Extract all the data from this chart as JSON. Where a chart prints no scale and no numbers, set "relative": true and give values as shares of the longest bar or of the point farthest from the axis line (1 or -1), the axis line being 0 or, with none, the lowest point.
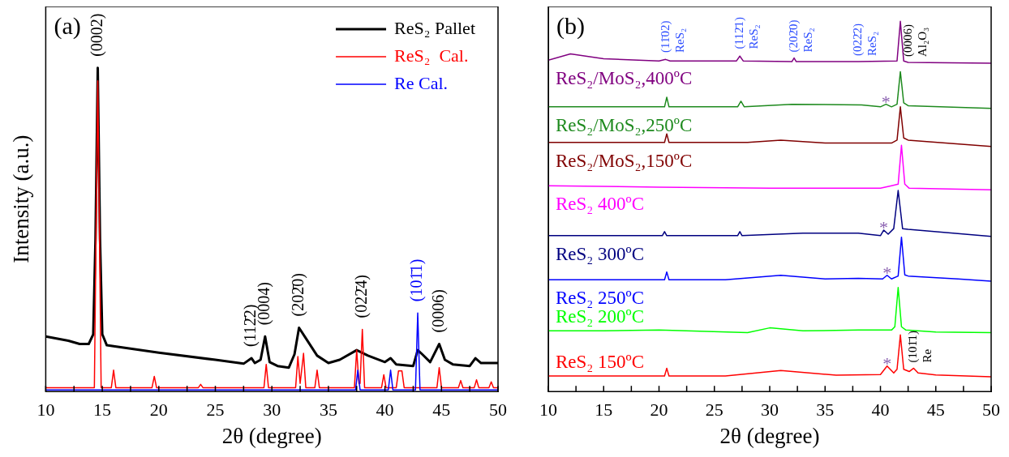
{
  "chart_data": [
    {
      "type": "line",
      "title": "(a)",
      "xlabel": "2θ (degree)",
      "ylabel": "Intensity (a.u.)",
      "relative": true,
      "marker": "none",
      "legend": "top right",
      "xlim": [
        10,
        50
      ],
      "xticks": [
        10,
        {
          "value": 12.5,
          "label": null
        },
        15,
        {
          "value": 17.5,
          "label": null
        },
        20,
        {
          "value": 22.5,
          "label": null
        },
        25,
        {
          "value": 27.5,
          "label": null
        },
        30,
        {
          "value": 32.5,
          "label": null
        },
        35,
        {
          "value": 37.5,
          "label": null
        },
        40,
        {
          "value": 42.5,
          "label": null
        },
        45,
        {
          "value": 47.5,
          "label": null
        },
        50
      ],
      "series": [
        {
          "name": "ReS₂ Pallet",
          "color": "#000000",
          "x": [
            10,
            12,
            13,
            13.8,
            14.2,
            14.4,
            14.6,
            14.8,
            15.0,
            15.4,
            16,
            20,
            25,
            27.5,
            28.2,
            28.5,
            29.0,
            29.4,
            29.8,
            30.5,
            31.5,
            32.0,
            32.4,
            33,
            34,
            35,
            36,
            37.5,
            38.5,
            40,
            40.5,
            41,
            42.5,
            42.9,
            43.3,
            44,
            44.8,
            45.3,
            46,
            47.5,
            48,
            48.5,
            50
          ],
          "values": [
            0.17,
            0.157,
            0.147,
            0.147,
            0.177,
            0.472,
            1,
            0.472,
            0.177,
            0.143,
            0.14,
            0.12,
            0.098,
            0.086,
            0.103,
            0.088,
            0.098,
            0.17,
            0.091,
            0.079,
            0.074,
            0.115,
            0.197,
            0.165,
            0.111,
            0.088,
            0.098,
            0.128,
            0.111,
            0.091,
            0.103,
            0.084,
            0.079,
            0.128,
            0.115,
            0.091,
            0.147,
            0.098,
            0.084,
            0.079,
            0.103,
            0.088,
            0.088
          ]
        },
        {
          "name": "ReS₂  Cal.",
          "color": "#ff0000",
          "x": [
            10,
            14.3,
            14.6,
            14.9,
            15.8,
            16.0,
            16.2,
            19.4,
            19.6,
            19.8,
            23.5,
            23.7,
            23.9,
            29.3,
            29.5,
            29.7,
            32.1,
            32.3,
            32.5,
            32.8,
            33.0,
            33.8,
            34.0,
            34.2,
            37.3,
            37.5,
            37.7,
            37.8,
            38.0,
            38.2,
            39.7,
            39.9,
            40.1,
            41.0,
            41.2,
            41.5,
            41.7,
            44.6,
            44.8,
            45.0,
            46.5,
            46.7,
            46.9,
            47.9,
            48.1,
            48.3,
            49.2,
            49.4,
            49.6,
            50
          ],
          "values": [
            0.012,
            0.012,
            0.96,
            0.012,
            0.012,
            0.066,
            0.012,
            0.012,
            0.047,
            0.012,
            0.012,
            0.022,
            0.012,
            0.012,
            0.084,
            0.012,
            0.012,
            0.108,
            0.025,
            0.118,
            0.012,
            0.012,
            0.066,
            0.012,
            0.012,
            0.128,
            0.025,
            0.025,
            0.192,
            0.012,
            0.012,
            0.052,
            0.012,
            0.012,
            0.064,
            0.064,
            0.012,
            0.012,
            0.074,
            0.012,
            0.012,
            0.034,
            0.012,
            0.012,
            0.036,
            0.012,
            0.012,
            0.03,
            0.012,
            0.012
          ]
        },
        {
          "name": "Re Cal.",
          "color": "#0000ff",
          "x": [
            10,
            37.4,
            37.6,
            37.8,
            40.3,
            40.5,
            40.7,
            42.7,
            42.9,
            43.1,
            50
          ],
          "values": [
            0.005,
            0.005,
            0.066,
            0.005,
            0.005,
            0.066,
            0.005,
            0.005,
            0.243,
            0.005,
            0.005
          ]
        }
      ],
      "annotations": [
        {
          "text": "(0002)",
          "x": 14.6,
          "y": 1
        },
        {
          "text": "(112̄2)",
          "x": 28.2,
          "y": 0.103
        },
        {
          "text": "(0004)",
          "x": 29.4,
          "y": 0.17
        },
        {
          "text": "(202̄0)",
          "x": 32.4,
          "y": 0.197
        },
        {
          "text": "(022̄4)",
          "x": 38.0,
          "y": 0.192
        },
        {
          "text": "(101̄1)",
          "x": 42.9,
          "y": 0.243
        },
        {
          "text": "(0006)",
          "x": 44.8,
          "y": 0.147
        }
      ]
    },
    {
      "type": "line",
      "title": "(b)",
      "xlabel": "2θ (degree)",
      "relative": true,
      "marker": "none",
      "xlim": [
        10,
        50
      ],
      "xticks": [
        10,
        {
          "value": 12.5,
          "label": null
        },
        15,
        {
          "value": 17.5,
          "label": null
        },
        20,
        {
          "value": 22.5,
          "label": null
        },
        25,
        {
          "value": 27.5,
          "label": null
        },
        30,
        {
          "value": 32.5,
          "label": null
        },
        35,
        {
          "value": 37.5,
          "label": null
        },
        40,
        {
          "value": 42.5,
          "label": null
        },
        45,
        {
          "value": 47.5,
          "label": null
        },
        50
      ],
      "series": [
        {
          "name": "ReS₂/MoS₂,400ºC",
          "color": "#800080",
          "x": [
            10,
            12,
            15,
            20,
            20.6,
            21,
            27,
            27.3,
            27.6,
            32,
            32.2,
            32.4,
            38,
            41.5,
            41.8,
            42.1,
            42.5,
            50
          ],
          "values": [
            0.895,
            0.912,
            0.899,
            0.893,
            0.897,
            0.893,
            0.893,
            0.906,
            0.893,
            0.891,
            0.901,
            0.891,
            0.891,
            0.893,
            1.0,
            0.893,
            0.889,
            0.887
          ]
        },
        {
          "name": "ReS₂/MoS₂,250ºC",
          "color": "#1e8a1e",
          "x": [
            10,
            20.5,
            20.7,
            20.9,
            27.1,
            27.4,
            27.7,
            32,
            38.3,
            40,
            40.5,
            41,
            41.5,
            41.8,
            42.1,
            42.5,
            50
          ],
          "values": [
            0.769,
            0.769,
            0.795,
            0.769,
            0.769,
            0.784,
            0.769,
            0.776,
            0.774,
            0.769,
            0.776,
            0.769,
            0.776,
            0.864,
            0.78,
            0.772,
            0.765
          ]
        },
        {
          "name": "ReS₂/MoS₂,150ºC",
          "color": "#800000",
          "x": [
            10,
            20.5,
            20.7,
            20.9,
            28,
            31,
            35,
            41,
            41.5,
            41.8,
            42.1,
            42.5,
            50
          ],
          "values": [
            0.673,
            0.673,
            0.696,
            0.673,
            0.673,
            0.679,
            0.671,
            0.671,
            0.679,
            0.769,
            0.685,
            0.679,
            0.662
          ]
        },
        {
          "name": "ReS₂ 400ºC",
          "color": "#ff00ff",
          "x": [
            10,
            20,
            30,
            40,
            41,
            41.6,
            41.9,
            42.2,
            42.6,
            50
          ],
          "values": [
            0.556,
            0.552,
            0.549,
            0.549,
            0.556,
            0.56,
            0.665,
            0.56,
            0.549,
            0.545
          ]
        },
        {
          "name": "ReS₂ 300ºC",
          "color": "#000080",
          "x": [
            10,
            20.3,
            20.5,
            20.7,
            27.1,
            27.3,
            27.5,
            33,
            38,
            40,
            40.3,
            40.7,
            41.2,
            41.6,
            42,
            42.5,
            50
          ],
          "values": [
            0.421,
            0.421,
            0.432,
            0.421,
            0.421,
            0.432,
            0.421,
            0.428,
            0.428,
            0.421,
            0.436,
            0.425,
            0.44,
            0.543,
            0.44,
            0.438,
            0.419
          ]
        },
        {
          "name": "ReS₂ 250ºC",
          "color": "#0000ff",
          "x": [
            10,
            20.5,
            20.7,
            20.9,
            26,
            31,
            35,
            38,
            40.2,
            40.6,
            41,
            41.6,
            41.9,
            42.2,
            42.5,
            47,
            50
          ],
          "values": [
            0.302,
            0.302,
            0.323,
            0.302,
            0.302,
            0.314,
            0.304,
            0.306,
            0.304,
            0.314,
            0.304,
            0.312,
            0.417,
            0.315,
            0.312,
            0.304,
            0.298
          ]
        },
        {
          "name": "ReS₂ 200ºC",
          "color": "#00ff00",
          "x": [
            10,
            15,
            20,
            28,
            30,
            33,
            38,
            41,
            41.3,
            41.6,
            41.9,
            42.3,
            45,
            50
          ],
          "values": [
            0.164,
            0.164,
            0.166,
            0.159,
            0.172,
            0.164,
            0.166,
            0.166,
            0.175,
            0.281,
            0.175,
            0.166,
            0.161,
            0.159
          ]
        },
        {
          "name": "ReS₂ 150ºC",
          "color": "#ff0000",
          "x": [
            10,
            20.5,
            20.7,
            20.9,
            26,
            31,
            36,
            40,
            40.6,
            41.2,
            41.5,
            41.8,
            42.1,
            42.6,
            43,
            43.4,
            45,
            50
          ],
          "values": [
            0.042,
            0.042,
            0.063,
            0.042,
            0.042,
            0.057,
            0.044,
            0.046,
            0.069,
            0.05,
            0.06,
            0.153,
            0.06,
            0.054,
            0.063,
            0.05,
            0.045,
            0.04
          ]
        }
      ],
      "annotations": [
        {
          "text": "(11̄02) ReS₂",
          "x": 20.6,
          "y": 0.9
        },
        {
          "text": "(112̄1) ReS₂",
          "x": 27.3,
          "y": 0.91
        },
        {
          "text": "(202̄0) ReS₂",
          "x": 32.2,
          "y": 0.901
        },
        {
          "text": "(022̄2) ReS₂",
          "x": 38,
          "y": 0.891
        },
        {
          "text": "(0006) Al₂O₃",
          "x": 42.5,
          "y": 0.889
        },
        {
          "text": "(101̄1) Re",
          "x": 43.0,
          "y": 0.063
        },
        {
          "text": "*",
          "x": 40.5,
          "y": 0.776
        },
        {
          "text": "*",
          "x": 40.3,
          "y": 0.436
        },
        {
          "text": "*",
          "x": 40.6,
          "y": 0.314
        },
        {
          "text": "*",
          "x": 40.6,
          "y": 0.069
        }
      ]
    }
  ]
}
